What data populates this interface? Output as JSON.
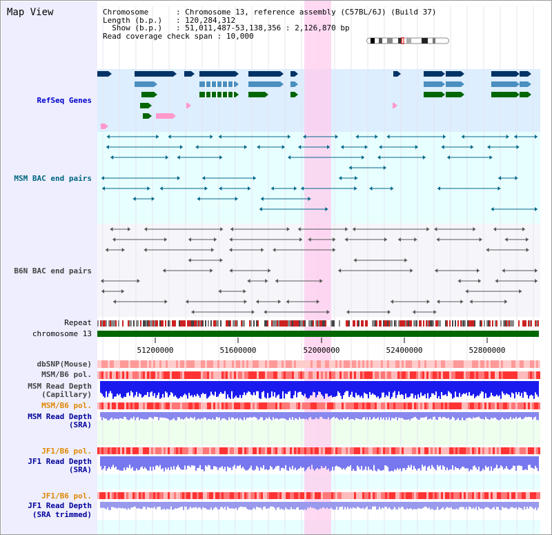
{
  "view_title": "Map View",
  "info": {
    "chromosome_label": "Chromosome",
    "chromosome_value": "Chromosome 13, reference assembly (C57BL/6J) (Build 37)",
    "length_label": "Length (b.p.)",
    "length_value": "120,284,312",
    "show_label": "Show (b.p.)",
    "show_value": "51,011,487-53,138,356 : 2,126,870 bp",
    "coverage_label": "Read coverage check span",
    "coverage_value": "10,000"
  },
  "tracks": {
    "refseq": "RefSeq Genes",
    "msm_bac": "MSM BAC end pairs",
    "b6n_bac": "B6N BAC end pairs",
    "repeat": "Repeat",
    "chromosome": "chromosome 13",
    "dbsnp": "dbSNP(Mouse)",
    "msm_b6_pol_1": "MSM/B6 pol.",
    "msm_depth_cap_1": "MSM Read Depth",
    "msm_depth_cap_2": "(Capillary)",
    "msm_b6_pol_2": "MSM/B6 pol.",
    "msm_depth_sra_1": "MSM Read Depth",
    "msm_depth_sra_2": "(SRA)",
    "jf1_b6_pol_1": "JF1/B6 pol.",
    "jf1_depth_sra_1": "JF1 Read Depth",
    "jf1_depth_sra_2": "(SRA)",
    "jf1_b6_pol_2": "JF1/B6 pol.",
    "jf1_depth_trim_1": "JF1 Read Depth",
    "jf1_depth_trim_2": "(SRA trimmed)"
  },
  "axis": {
    "ticks": [
      "51200000",
      "51600000",
      "52000000",
      "52400000",
      "52800000"
    ]
  },
  "colors": {
    "left_panel": "#eeeeff",
    "refseq_bg": "#ddeeff",
    "bac_bg": "#e8ffff",
    "highlight": "#ffccee",
    "gene_dark": "#003366",
    "gene_mid": "#4a8fc0",
    "gene_green": "#006600",
    "pink": "#ff99cc",
    "chromosome_bar": "#006600"
  }
}
